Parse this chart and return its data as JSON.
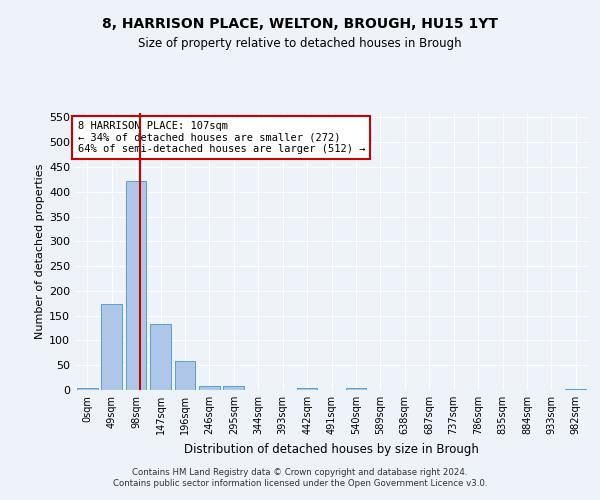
{
  "title1": "8, HARRISON PLACE, WELTON, BROUGH, HU15 1YT",
  "title2": "Size of property relative to detached houses in Brough",
  "xlabel": "Distribution of detached houses by size in Brough",
  "ylabel": "Number of detached properties",
  "bar_labels": [
    "0sqm",
    "49sqm",
    "98sqm",
    "147sqm",
    "196sqm",
    "246sqm",
    "295sqm",
    "344sqm",
    "393sqm",
    "442sqm",
    "491sqm",
    "540sqm",
    "589sqm",
    "638sqm",
    "687sqm",
    "737sqm",
    "786sqm",
    "835sqm",
    "884sqm",
    "933sqm",
    "982sqm"
  ],
  "bar_values": [
    5,
    174,
    422,
    133,
    59,
    8,
    8,
    0,
    0,
    5,
    0,
    5,
    0,
    0,
    0,
    0,
    0,
    0,
    0,
    0,
    3
  ],
  "bar_color": "#aec6e8",
  "bar_edge_color": "#5a9fd4",
  "vline_x": 2.18,
  "vline_color": "#cc0000",
  "annotation_text": "8 HARRISON PLACE: 107sqm\n← 34% of detached houses are smaller (272)\n64% of semi-detached houses are larger (512) →",
  "annotation_box_color": "#ffffff",
  "annotation_box_edge": "#cc0000",
  "ylim": [
    0,
    560
  ],
  "yticks": [
    0,
    50,
    100,
    150,
    200,
    250,
    300,
    350,
    400,
    450,
    500,
    550
  ],
  "footer": "Contains HM Land Registry data © Crown copyright and database right 2024.\nContains public sector information licensed under the Open Government Licence v3.0.",
  "bg_color": "#eef2f9"
}
